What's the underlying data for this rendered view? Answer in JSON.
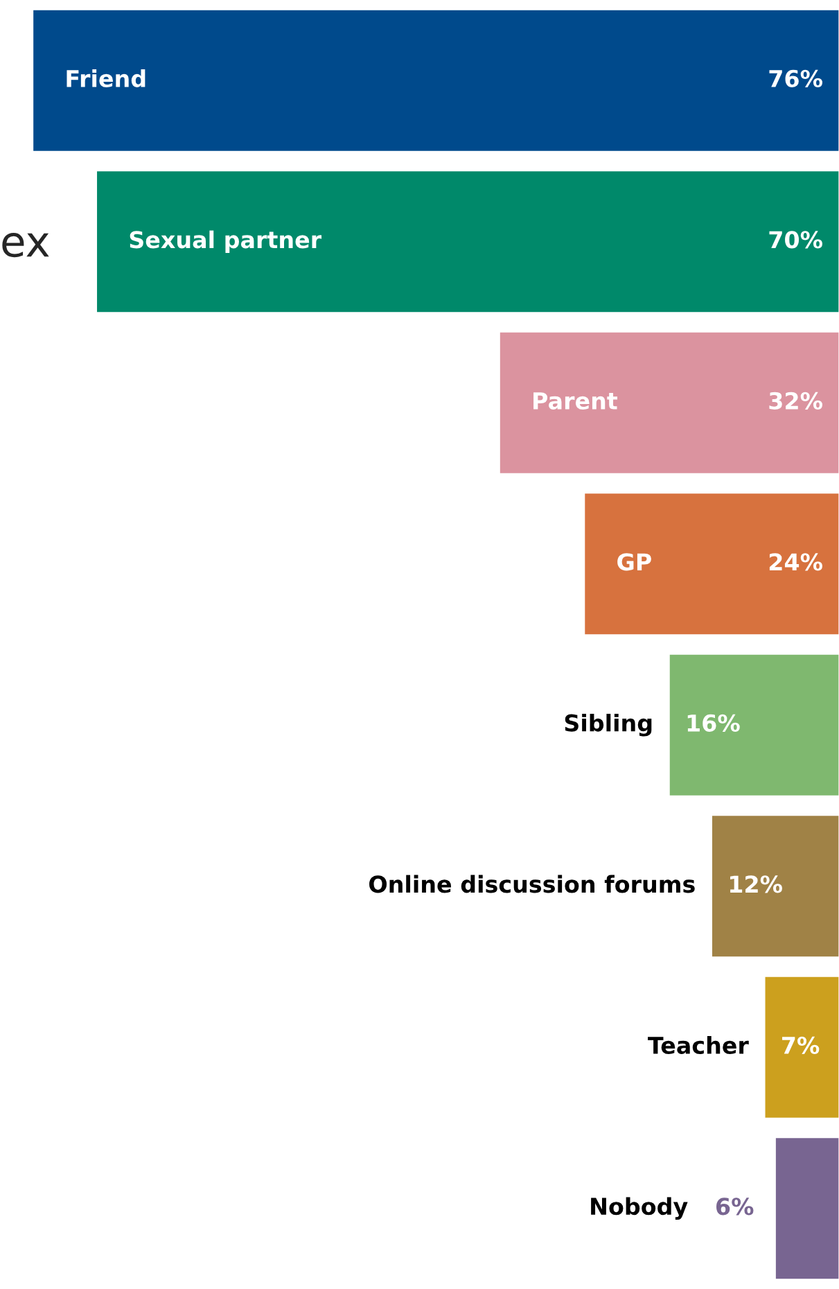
{
  "chart_data": {
    "type": "bar",
    "orientation": "horizontal",
    "categories": [
      "Friend",
      "Sexual partner",
      "Parent",
      "GP",
      "Sibling",
      "Online discussion forums",
      "Teacher",
      "Nobody"
    ],
    "values": [
      76,
      70,
      32,
      24,
      16,
      12,
      7,
      6
    ],
    "colors": [
      "#004a8c",
      "#00896a",
      "#db939f",
      "#d7723e",
      "#7fb86f",
      "#a08246",
      "#cca01e",
      "#786591"
    ],
    "value_labels": [
      "76%",
      "70%",
      "32%",
      "24%",
      "16%",
      "12%",
      "7%",
      "6%"
    ],
    "legend": false,
    "annotations": [
      "ex"
    ]
  }
}
